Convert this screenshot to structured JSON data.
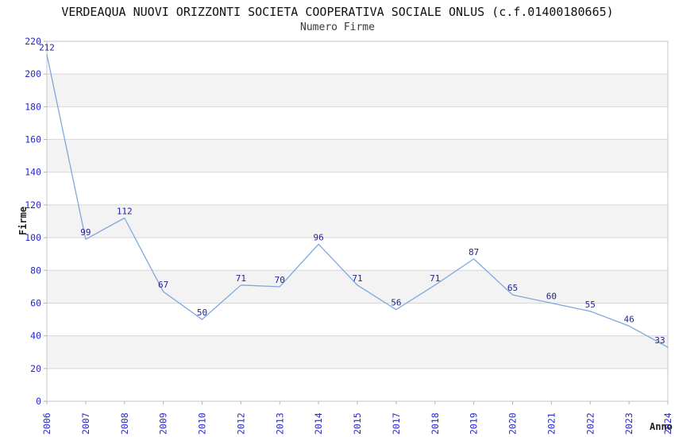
{
  "page": {
    "title": "VERDEAQUA NUOVI ORIZZONTI SOCIETA COOPERATIVA SOCIALE ONLUS (c.f.01400180665)",
    "subtitle": "Numero Firme"
  },
  "chart_data": {
    "type": "line",
    "title": "VERDEAQUA NUOVI ORIZZONTI SOCIETA COOPERATIVA SOCIALE ONLUS (c.f.01400180665)",
    "subtitle": "Numero Firme",
    "xlabel": "Anno",
    "ylabel": "Firme",
    "categories": [
      "2006",
      "2007",
      "2008",
      "2009",
      "2010",
      "2012",
      "2013",
      "2014",
      "2015",
      "2017",
      "2018",
      "2019",
      "2020",
      "2021",
      "2022",
      "2023",
      "2024"
    ],
    "values": [
      212,
      99,
      112,
      67,
      50,
      71,
      70,
      96,
      71,
      56,
      71,
      87,
      65,
      60,
      55,
      46,
      33
    ],
    "point_labels": [
      "212",
      "99",
      "112",
      "67",
      "50",
      "71",
      "70",
      "96",
      "71",
      "56",
      "71",
      "87",
      "65",
      "60",
      "55",
      "46",
      "33"
    ],
    "ylim": [
      0,
      220
    ],
    "ytick_step": 20,
    "ytick_labels": [
      "0",
      "20",
      "40",
      "60",
      "80",
      "100",
      "120",
      "140",
      "160",
      "180",
      "200",
      "220"
    ],
    "grid": true,
    "legend": false,
    "banding": "alternating-horizontal",
    "colors": {
      "line": "#7fa8dc",
      "tick_label": "#2828cf",
      "point_label": "#1f1f99",
      "axis_title": "#222222",
      "band": "#f3f3f3",
      "gridline": "#d8d8d8",
      "border": "#c6c6c6",
      "tick_mark": "#b4b4b4",
      "background": "#ffffff"
    }
  }
}
